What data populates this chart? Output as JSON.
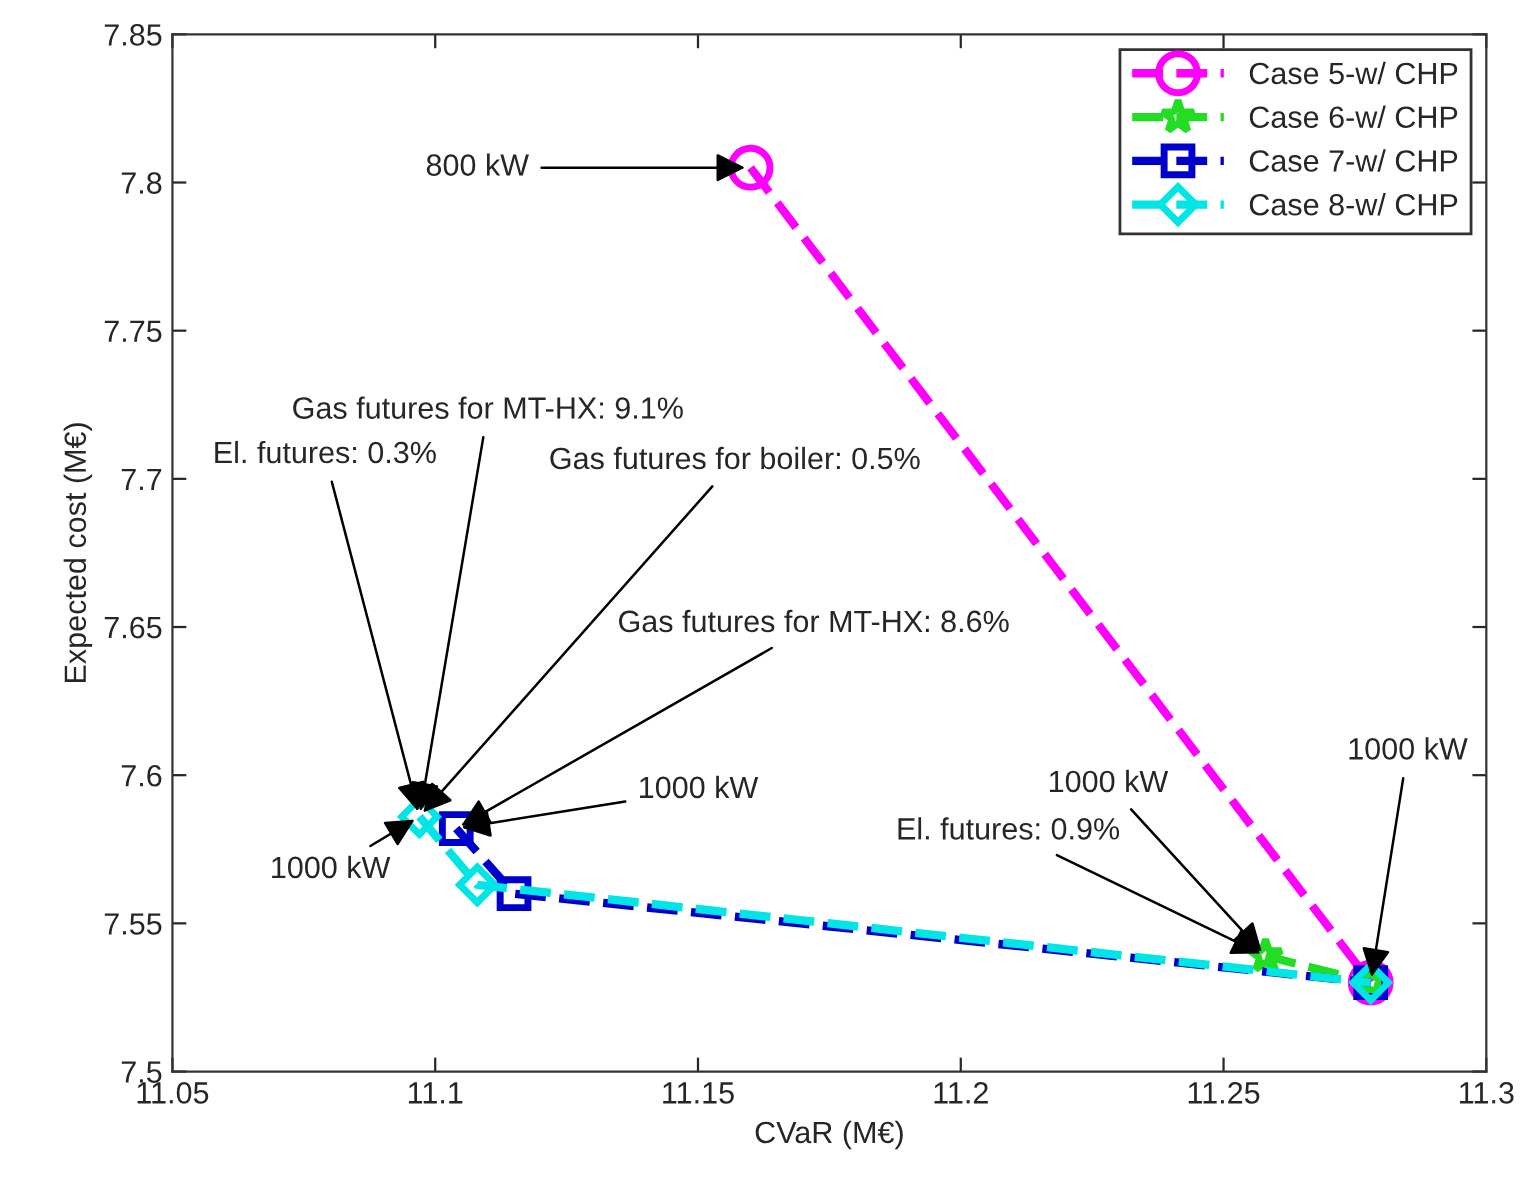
{
  "chart_data": {
    "type": "line",
    "xlabel": "CVaR (M€)",
    "ylabel": "Expected cost (M€)",
    "xlim": [
      11.05,
      11.3
    ],
    "xticks": [
      11.05,
      11.1,
      11.15,
      11.2,
      11.25,
      11.3
    ],
    "ylim": [
      7.5,
      7.85
    ],
    "yticks": [
      7.5,
      7.55,
      7.6,
      7.65,
      7.7,
      7.75,
      7.8,
      7.85
    ],
    "grid": false,
    "legend": "top right",
    "line_style": "dashed",
    "series": [
      {
        "name": "Case 5-w/ CHP",
        "color": "#ff00ff",
        "marker": "circle",
        "x": [
          11.16,
          11.278
        ],
        "values": [
          7.805,
          7.53
        ]
      },
      {
        "name": "Case 6-w/ CHP",
        "color": "#22dd22",
        "marker": "star",
        "x": [
          11.258,
          11.278
        ],
        "values": [
          7.539,
          7.53
        ]
      },
      {
        "name": "Case 7-w/ CHP",
        "color": "#0000cc",
        "marker": "square",
        "x": [
          11.104,
          11.115,
          11.278
        ],
        "values": [
          7.582,
          7.56,
          7.53
        ]
      },
      {
        "name": "Case 8-w/ CHP",
        "color": "#00e5e5",
        "marker": "diamond",
        "x": [
          11.097,
          11.108,
          11.278
        ],
        "values": [
          7.586,
          7.563,
          7.53
        ]
      }
    ],
    "annotations": [
      {
        "text": "800 kW",
        "x": 11.16,
        "y": 7.805
      },
      {
        "text": "Gas futures for MT-HX: 9.1%",
        "x": 11.097,
        "y": 7.586
      },
      {
        "text": "El. futures: 0.3%",
        "x": 11.097,
        "y": 7.586
      },
      {
        "text": "Gas futures for boiler: 0.5%",
        "x": 11.097,
        "y": 7.586
      },
      {
        "text": "Gas futures for MT-HX: 8.6%",
        "x": 11.104,
        "y": 7.582
      },
      {
        "text": "1000 kW",
        "x": 11.104,
        "y": 7.582
      },
      {
        "text": "1000 kW",
        "x": 11.097,
        "y": 7.586
      },
      {
        "text": "1000 kW",
        "x": 11.258,
        "y": 7.539
      },
      {
        "text": "El. futures: 0.9%",
        "x": 11.258,
        "y": 7.539
      },
      {
        "text": "1000 kW",
        "x": 11.278,
        "y": 7.53
      }
    ]
  }
}
